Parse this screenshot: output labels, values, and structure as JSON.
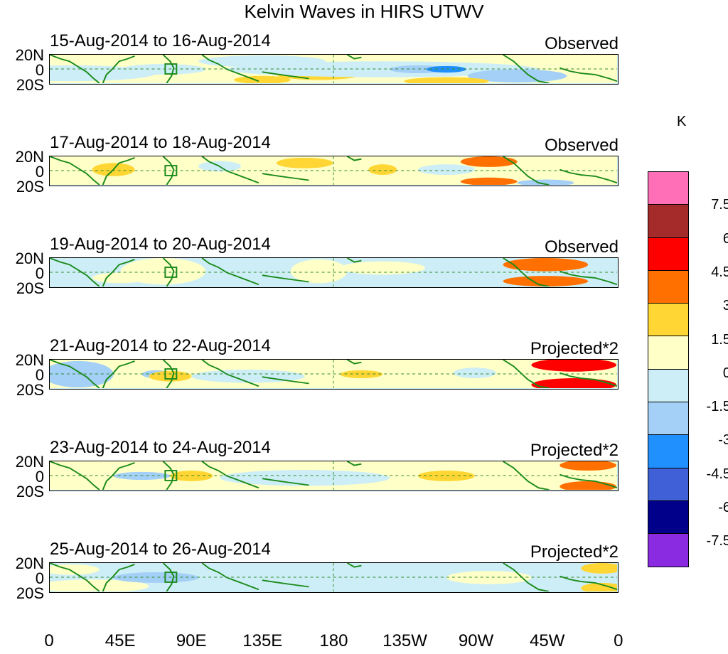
{
  "title": "Kelvin Waves in HIRS UTWV",
  "panels": [
    {
      "date_range": "15-Aug-2014 to 16-Aug-2014",
      "kind": "Observed"
    },
    {
      "date_range": "17-Aug-2014 to 18-Aug-2014",
      "kind": "Observed"
    },
    {
      "date_range": "19-Aug-2014 to 20-Aug-2014",
      "kind": "Observed"
    },
    {
      "date_range": "21-Aug-2014 to 22-Aug-2014",
      "kind": "Projected*2"
    },
    {
      "date_range": "23-Aug-2014 to 24-Aug-2014",
      "kind": "Projected*2"
    },
    {
      "date_range": "25-Aug-2014 to 26-Aug-2014",
      "kind": "Projected*2"
    }
  ],
  "lat_labels": [
    "20N",
    "0",
    "20S"
  ],
  "lon_labels": [
    "0",
    "45E",
    "90E",
    "135E",
    "180",
    "135W",
    "90W",
    "45W",
    "0"
  ],
  "colorbar": {
    "unit": "K",
    "labels": [
      "7.5",
      "6",
      "4.5",
      "3",
      "1.5",
      "0",
      "-1.5",
      "-3",
      "-4.5",
      "-6",
      "-7.5"
    ],
    "colors": [
      "#ff6fb8",
      "#a52a2a",
      "#ff0000",
      "#ff7000",
      "#ffd633",
      "#ffffc8",
      "#cdeef6",
      "#a4cff7",
      "#2090ff",
      "#4060d8",
      "#00008b",
      "#8a2be2"
    ]
  },
  "colors": {
    "coast": "#1a8a1a",
    "grid": "#2e8b2e"
  }
}
